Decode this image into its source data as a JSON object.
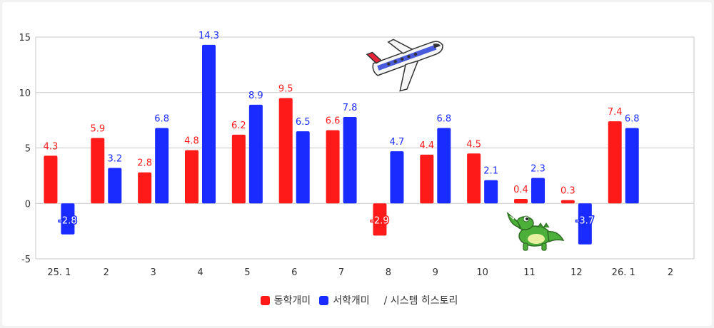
{
  "colors": {
    "series_a": "#ff1a1a",
    "series_b": "#1a2bff",
    "grid": "#c8c8c8",
    "axis": "#555555"
  },
  "chart_data": {
    "type": "bar",
    "categories": [
      "25. 1",
      "2",
      "3",
      "4",
      "5",
      "6",
      "7",
      "8",
      "9",
      "10",
      "11",
      "12",
      "26. 1",
      "2"
    ],
    "series": [
      {
        "name": "동학개미",
        "values": [
          4.3,
          5.9,
          2.8,
          4.8,
          6.2,
          9.5,
          6.6,
          -2.9,
          4.4,
          4.5,
          0.4,
          0.3,
          7.4,
          null
        ]
      },
      {
        "name": "서학개미",
        "values": [
          -2.8,
          3.2,
          6.8,
          14.3,
          8.9,
          6.5,
          7.8,
          4.7,
          6.8,
          2.1,
          2.3,
          -3.7,
          6.8,
          null
        ]
      }
    ],
    "ylim": [
      -5,
      15
    ],
    "yticks": [
      -5,
      0,
      5,
      10,
      15
    ],
    "grid": true,
    "legend_position": "bottom-center",
    "decorations": [
      "airplane-illustration",
      "crocodile-illustration"
    ]
  },
  "legend": {
    "note": "/  시스템 히스토리"
  }
}
